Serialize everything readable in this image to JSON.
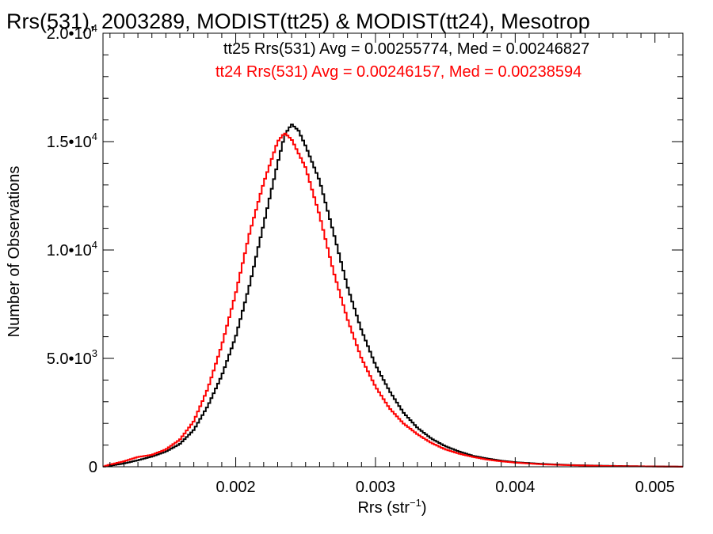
{
  "chart_data": {
    "type": "line",
    "title": "Rrs(531), 2003289, MODIST(tt25) & MODIST(tt24), Mesotrop",
    "xlabel": "Rrs (str",
    "xlabel_sup": "−1",
    "xlabel_close": ")",
    "ylabel": "Number of Observations",
    "xlim": [
      0.00105,
      0.0052
    ],
    "ylim": [
      0,
      20000
    ],
    "x_ticks": [
      {
        "value": 0.002,
        "label": "0.002"
      },
      {
        "value": 0.003,
        "label": "0.003"
      },
      {
        "value": 0.004,
        "label": "0.004"
      },
      {
        "value": 0.005,
        "label": "0.005"
      }
    ],
    "y_ticks": [
      {
        "value": 0,
        "label": "0",
        "sup": ""
      },
      {
        "value": 5000,
        "label": "5.0•10",
        "sup": "3"
      },
      {
        "value": 10000,
        "label": "1.0•10",
        "sup": "4"
      },
      {
        "value": 15000,
        "label": "1.5•10",
        "sup": "4"
      },
      {
        "value": 20000,
        "label": "2.0•10",
        "sup": "4"
      }
    ],
    "annotations": [
      {
        "text": "tt25 Rrs(531) Avg = 0.00255774, Med = 0.00246827",
        "color": "#000000"
      },
      {
        "text": "tt24 Rrs(531) Avg = 0.00246157, Med = 0.00238594",
        "color": "#ff0000"
      }
    ],
    "series": [
      {
        "color": "#000000",
        "style": "step",
        "points": [
          [
            0.00105,
            0
          ],
          [
            0.0011,
            50
          ],
          [
            0.0012,
            150
          ],
          [
            0.0013,
            300
          ],
          [
            0.0014,
            470
          ],
          [
            0.0015,
            700
          ],
          [
            0.0016,
            1050
          ],
          [
            0.0017,
            1700
          ],
          [
            0.0018,
            2800
          ],
          [
            0.0019,
            4200
          ],
          [
            0.002,
            6000
          ],
          [
            0.0021,
            8400
          ],
          [
            0.0022,
            11200
          ],
          [
            0.0023,
            14000
          ],
          [
            0.00235,
            15300
          ],
          [
            0.0024,
            15800
          ],
          [
            0.00245,
            15500
          ],
          [
            0.0025,
            14800
          ],
          [
            0.0026,
            13200
          ],
          [
            0.0027,
            10800
          ],
          [
            0.0028,
            8300
          ],
          [
            0.0029,
            6300
          ],
          [
            0.003,
            4700
          ],
          [
            0.0031,
            3500
          ],
          [
            0.0032,
            2500
          ],
          [
            0.0033,
            1800
          ],
          [
            0.0034,
            1300
          ],
          [
            0.0035,
            950
          ],
          [
            0.0036,
            700
          ],
          [
            0.0037,
            500
          ],
          [
            0.0038,
            380
          ],
          [
            0.0039,
            280
          ],
          [
            0.004,
            210
          ],
          [
            0.0042,
            130
          ],
          [
            0.0044,
            80
          ],
          [
            0.0046,
            50
          ],
          [
            0.0048,
            30
          ],
          [
            0.005,
            15
          ],
          [
            0.0052,
            5
          ]
        ]
      },
      {
        "color": "#ff0000",
        "style": "step",
        "points": [
          [
            0.00105,
            0
          ],
          [
            0.0011,
            100
          ],
          [
            0.0012,
            250
          ],
          [
            0.0013,
            450
          ],
          [
            0.0014,
            550
          ],
          [
            0.0015,
            800
          ],
          [
            0.0016,
            1250
          ],
          [
            0.0017,
            2100
          ],
          [
            0.0018,
            3600
          ],
          [
            0.0019,
            5600
          ],
          [
            0.002,
            8000
          ],
          [
            0.0021,
            10800
          ],
          [
            0.0022,
            13100
          ],
          [
            0.0023,
            15000
          ],
          [
            0.00235,
            15400
          ],
          [
            0.0024,
            15100
          ],
          [
            0.0025,
            13800
          ],
          [
            0.0026,
            11600
          ],
          [
            0.0027,
            9000
          ],
          [
            0.0028,
            6800
          ],
          [
            0.0029,
            5000
          ],
          [
            0.003,
            3700
          ],
          [
            0.0031,
            2700
          ],
          [
            0.0032,
            2000
          ],
          [
            0.0033,
            1500
          ],
          [
            0.0034,
            1100
          ],
          [
            0.0035,
            800
          ],
          [
            0.0036,
            600
          ],
          [
            0.0037,
            450
          ],
          [
            0.0038,
            330
          ],
          [
            0.0039,
            250
          ],
          [
            0.004,
            190
          ],
          [
            0.0042,
            110
          ],
          [
            0.0044,
            70
          ],
          [
            0.0046,
            40
          ],
          [
            0.0048,
            25
          ],
          [
            0.005,
            12
          ],
          [
            0.0052,
            5
          ]
        ]
      }
    ]
  }
}
